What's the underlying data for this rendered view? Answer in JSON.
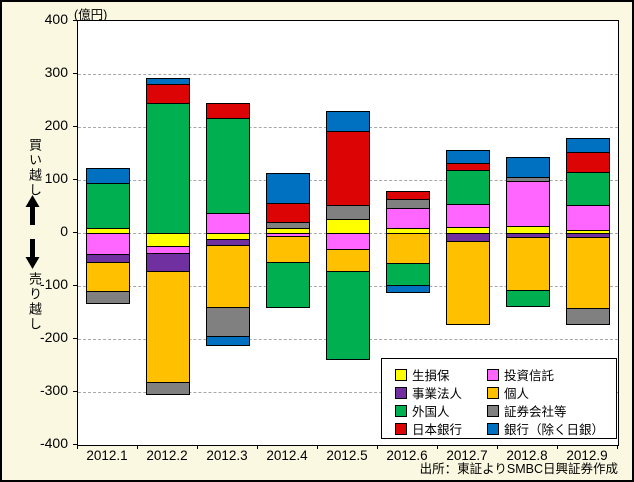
{
  "unit_label": "(億円)",
  "left_annotations": {
    "buy_label": "買い越し",
    "sell_label": "売り越し"
  },
  "source_note": "出所：東証よりSMBC日興証券作成",
  "chart_data": {
    "type": "bar",
    "subtype": "stacked-bar-with-negatives",
    "title": "",
    "unit_label": "(億円)",
    "categories": [
      "2012.1",
      "2012.2",
      "2012.3",
      "2012.4",
      "2012.5",
      "2012.6",
      "2012.7",
      "2012.8",
      "2012.9"
    ],
    "series": [
      {
        "name": "生損保",
        "color": "#ffff00",
        "values": [
          10,
          -25,
          -11,
          9,
          26,
          9,
          11,
          14,
          6
        ]
      },
      {
        "name": "投資信託",
        "color": "#ff66ff",
        "values": [
          -40,
          -13,
          37,
          -6,
          -30,
          38,
          44,
          84,
          47
        ]
      },
      {
        "name": "事業法人",
        "color": "#7030a0",
        "values": [
          -15,
          -34,
          -12,
          0,
          0,
          0,
          -16,
          -8,
          -7
        ]
      },
      {
        "name": "個人",
        "color": "#ffc000",
        "values": [
          -55,
          -210,
          -116,
          -48,
          -41,
          -56,
          -155,
          -100,
          -135
        ]
      },
      {
        "name": "外国人",
        "color": "#00b050",
        "values": [
          85,
          245,
          180,
          -86,
          -166,
          -43,
          63,
          -29,
          63
        ]
      },
      {
        "name": "証券会社等",
        "color": "#808080",
        "values": [
          -22,
          -22,
          -55,
          11,
          27,
          18,
          0,
          7,
          -30
        ]
      },
      {
        "name": "日本銀行",
        "color": "#dc0404",
        "values": [
          0,
          36,
          28,
          36,
          139,
          15,
          14,
          0,
          37
        ]
      },
      {
        "name": "銀行（除く日銀）",
        "color": "#0070c0",
        "values": [
          27,
          12,
          -18,
          58,
          38,
          -12,
          25,
          38,
          26
        ]
      }
    ],
    "ylim": [
      -400,
      400
    ],
    "ytick_step": 100,
    "grid": "dashed-horizontal",
    "legend_position": "inside-bottom-right",
    "legend_columns": [
      [
        0,
        2,
        4,
        6
      ],
      [
        1,
        3,
        5,
        7
      ]
    ]
  }
}
